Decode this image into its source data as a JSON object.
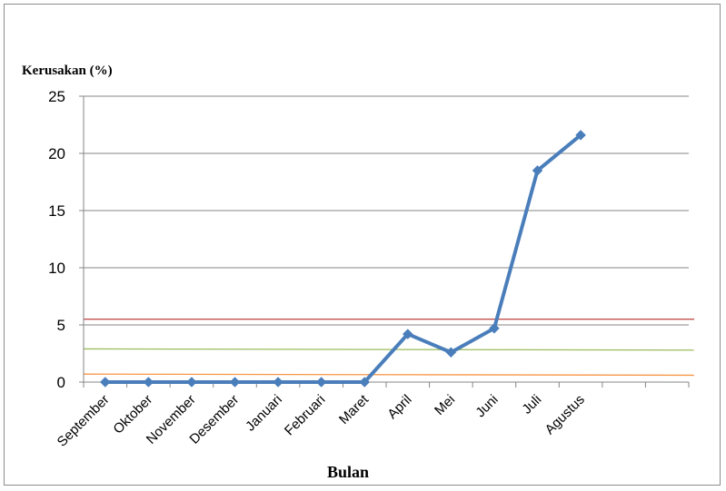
{
  "chart_data": {
    "type": "line",
    "title": "",
    "ylabel": "Kerusakan (%)",
    "xlabel": "Bulan",
    "categories": [
      "September",
      "Oktober",
      "November",
      "Desember",
      "Januari",
      "Februari",
      "Maret",
      "April",
      "Mei",
      "Juni",
      "Juli",
      "Agustus"
    ],
    "category_slots": 14,
    "ylim": [
      0,
      25
    ],
    "yticks": [
      0,
      5,
      10,
      15,
      20,
      25
    ],
    "grid": true,
    "legend": "none",
    "series": [
      {
        "color": "#4a7ebb",
        "marker": "diamond",
        "values": [
          0,
          0,
          0,
          0,
          0,
          0,
          0,
          4.2,
          2.6,
          4.7,
          18.5,
          21.6
        ]
      }
    ],
    "reference_lines": [
      {
        "color": "#c0504d",
        "y_start": 5.5,
        "y_end": 5.5
      },
      {
        "color": "#9bbb59",
        "y_start": 2.9,
        "y_end": 2.8
      },
      {
        "color": "#f79646",
        "y_start": 0.7,
        "y_end": 0.6
      }
    ]
  }
}
